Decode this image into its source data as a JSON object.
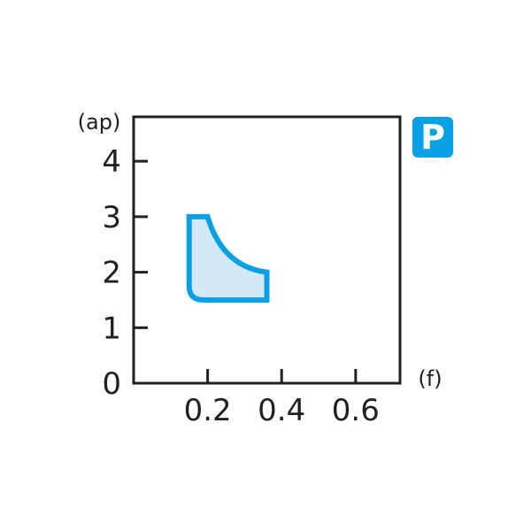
{
  "chart_data": {
    "type": "area",
    "xlabel": "(f)",
    "ylabel": "(ap)",
    "xlim": [
      0,
      0.72
    ],
    "ylim": [
      0,
      4.8
    ],
    "xticks": [
      "0.2",
      "0.4",
      "0.6"
    ],
    "xtick_values": [
      0.2,
      0.4,
      0.6
    ],
    "yticks": [
      "0",
      "1",
      "2",
      "3",
      "4"
    ],
    "ytick_values": [
      0,
      1,
      2,
      3,
      4
    ],
    "grid": false,
    "region": {
      "outline": [
        [
          0.15,
          3.0
        ],
        [
          0.2,
          3.0
        ],
        [
          0.36,
          2.0
        ],
        [
          0.36,
          1.5
        ],
        [
          0.19,
          1.5
        ],
        [
          0.15,
          1.75
        ]
      ],
      "curved_edge": {
        "from": [
          0.2,
          3.0
        ],
        "to": [
          0.36,
          2.0
        ],
        "control": [
          0.24,
          2.1
        ]
      },
      "rounded_corner": {
        "at": [
          0.15,
          1.5
        ]
      }
    },
    "badge": "P",
    "colors": {
      "outline": "#0aa0e6",
      "fill": "#d4e9f7",
      "axis": "#231f20",
      "badge": "#0aa0e6"
    }
  }
}
